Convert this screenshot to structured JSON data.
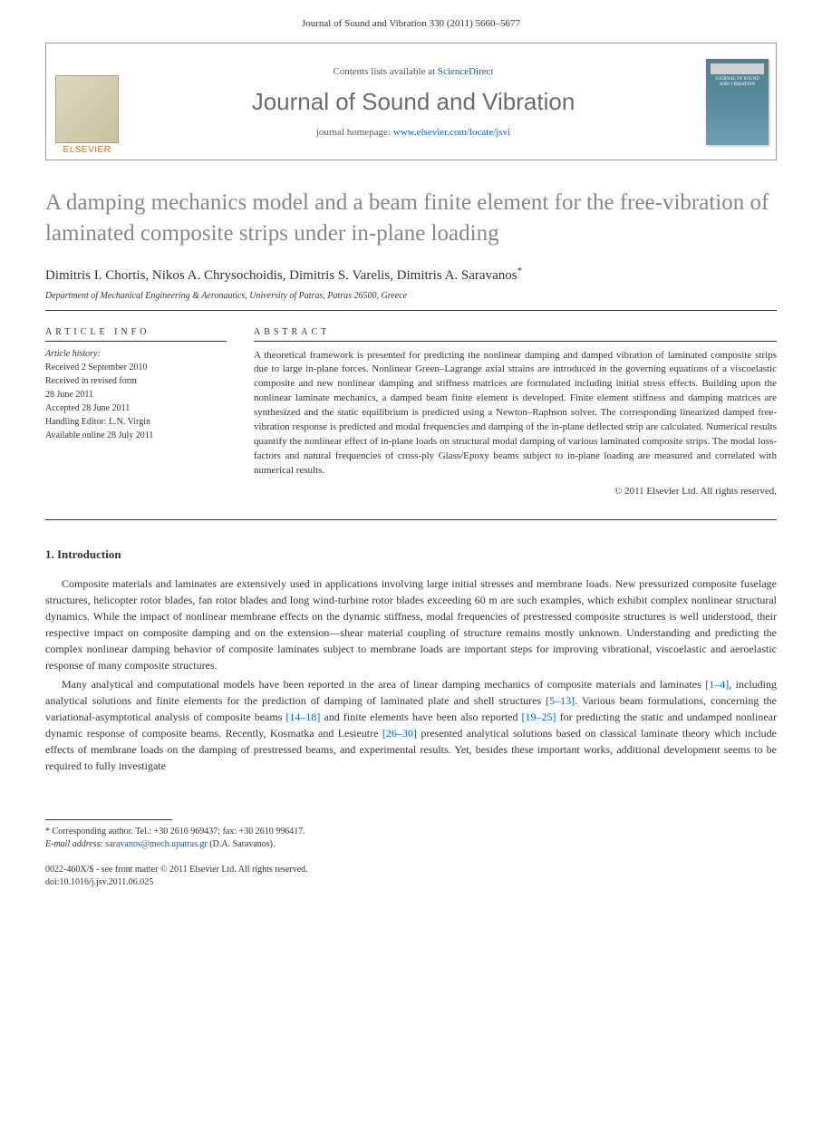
{
  "journal_ref": "Journal of Sound and Vibration 330 (2011) 5660–5677",
  "header": {
    "publisher": "ELSEVIER",
    "contents_prefix": "Contents lists available at ",
    "contents_link": "ScienceDirect",
    "journal_title": "Journal of Sound and Vibration",
    "homepage_prefix": "journal homepage: ",
    "homepage_url": "www.elsevier.com/locate/jsvi",
    "cover_text": "JOURNAL OF SOUND AND VIBRATION"
  },
  "article": {
    "title": "A damping mechanics model and a beam finite element for the free-vibration of laminated composite strips under in-plane loading",
    "authors": "Dimitris I. Chortis, Nikos A. Chrysochoidis, Dimitris S. Varelis, Dimitris A. Saravanos",
    "corr_mark": "*",
    "affiliation": "Department of Mechanical Engineering & Aeronautics, University of Patras, Patras 26500, Greece"
  },
  "info": {
    "label": "ARTICLE INFO",
    "history_label": "Article history:",
    "lines": [
      "Received 2 September 2010",
      "Received in revised form",
      "28 June 2011",
      "Accepted 28 June 2011",
      "Handling Editor: L.N. Virgin",
      "Available online 28 July 2011"
    ]
  },
  "abstract": {
    "label": "ABSTRACT",
    "text": "A theoretical framework is presented for predicting the nonlinear damping and damped vibration of laminated composite strips due to large in-plane forces. Nonlinear Green–Lagrange axial strains are introduced in the governing equations of a viscoelastic composite and new nonlinear damping and stiffness matrices are formulated including initial stress effects. Building upon the nonlinear laminate mechanics, a damped beam finite element is developed. Finite element stiffness and damping matrices are synthesized and the static equilibrium is predicted using a Newton–Raphson solver. The corresponding linearized damped free-vibration response is predicted and modal frequencies and damping of the in-plane deflected strip are calculated. Numerical results quantify the nonlinear effect of in-plane loads on structural modal damping of various laminated composite strips. The modal loss-factors and natural frequencies of cross-ply Glass/Epoxy beams subject to in-plane loading are measured and correlated with numerical results.",
    "copyright": "© 2011 Elsevier Ltd. All rights reserved."
  },
  "body": {
    "section_heading": "1.  Introduction",
    "para1_part1": "Composite materials and laminates are extensively used in applications involving large initial stresses and membrane loads. New pressurized composite fuselage structures, helicopter rotor blades, fan rotor blades and long wind-turbine rotor blades exceeding 60 m are such examples, which exhibit complex nonlinear structural dynamics. While the impact of nonlinear membrane effects on the dynamic stiffness, modal frequencies of prestressed composite structures is well understood, their respective impact on composite damping and on the extension—shear material coupling of structure remains mostly unknown. Understanding and predicting the complex nonlinear damping behavior of composite laminates subject to membrane loads are important steps for improving vibrational, viscoelastic and aeroelastic response of many composite structures.",
    "para2_part1": "Many analytical and computational models have been reported in the area of linear damping mechanics of composite materials and laminates ",
    "ref1": "[1–4]",
    "para2_part2": ", including analytical solutions and finite elements for the prediction of damping of laminated plate and shell structures ",
    "ref2": "[5–13]",
    "para2_part3": ". Various beam formulations, concerning the variational-asymptotical analysis of composite beams ",
    "ref3": "[14–18]",
    "para2_part4": " and finite elements have been also reported ",
    "ref4": "[19–25]",
    "para2_part5": " for predicting the static and undamped nonlinear dynamic response of composite beams. Recently, Kosmatka and Lesieutre ",
    "ref5": "[26–30]",
    "para2_part6": " presented analytical solutions based on classical laminate theory which include effects of membrane loads on the damping of prestressed beams, and experimental results. Yet, besides these important works, additional development seems to be required to fully investigate"
  },
  "footnote": {
    "corr_label": "* Corresponding author. Tel.: +30 2610 969437; fax: +30 2610 996417.",
    "email_label": "E-mail address: ",
    "email": "saravanos@mech.upatras.gr",
    "email_suffix": " (D.A. Saravanos)."
  },
  "footer": {
    "line1": "0022-460X/$ - see front matter © 2011 Elsevier Ltd. All rights reserved.",
    "line2": "doi:10.1016/j.jsv.2011.06.025"
  },
  "colors": {
    "link": "#0066cc",
    "title_gray": "#878787",
    "text": "#333333",
    "publisher_orange": "#ff6600"
  }
}
